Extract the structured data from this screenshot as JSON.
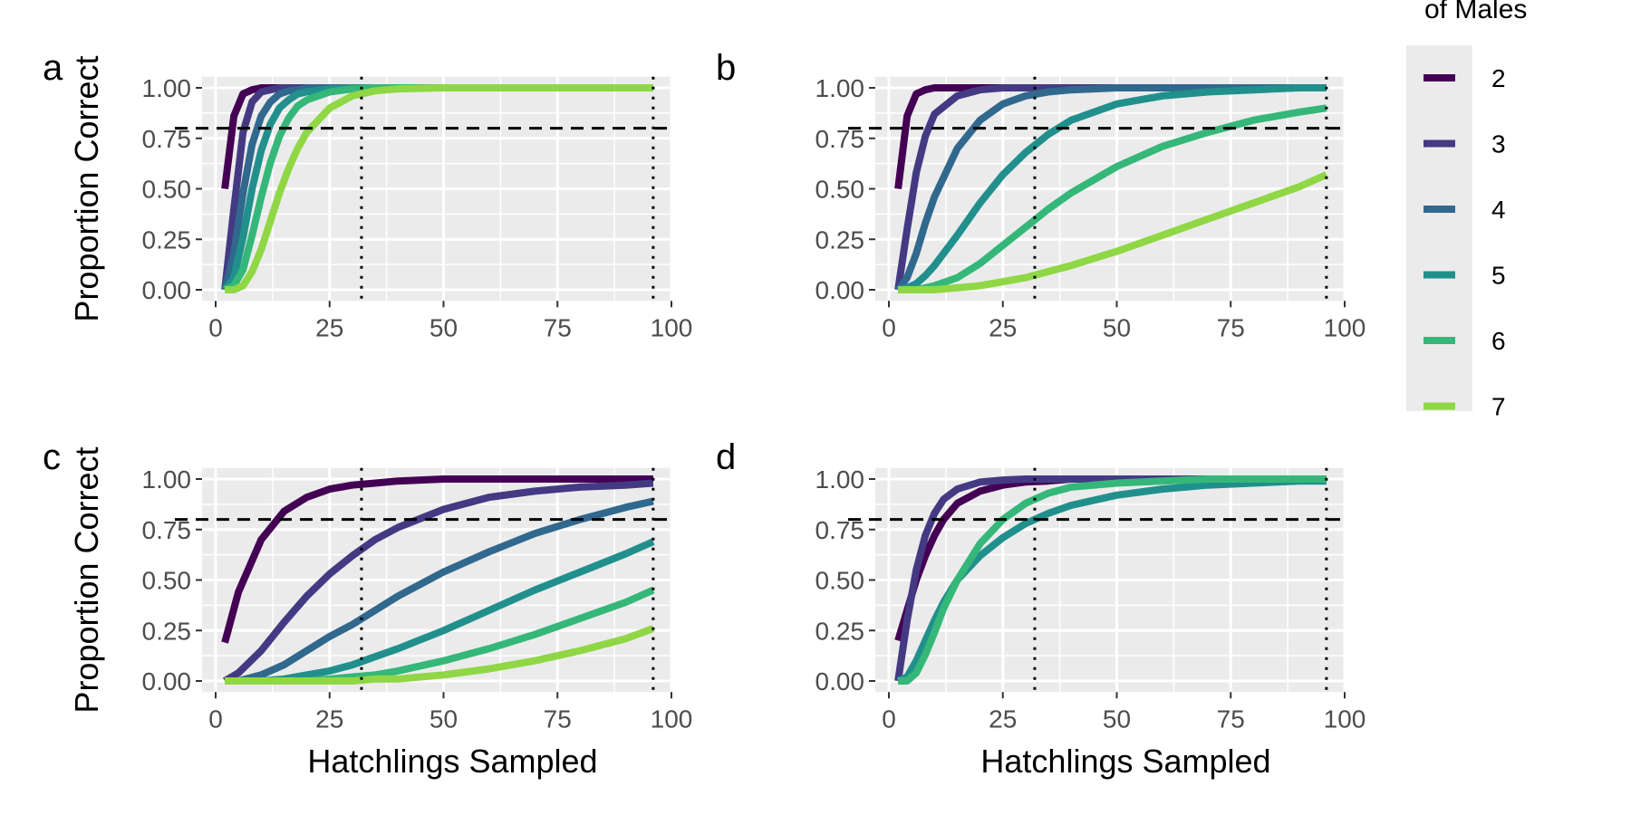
{
  "figure": {
    "legend_title": "of Males",
    "ylabel": "Proportion Correct",
    "xlabel": "Hatchlings Sampled",
    "colors": {
      "2": "#440154",
      "3": "#443A83",
      "4": "#31688E",
      "5": "#21908C",
      "6": "#35B779",
      "7": "#8FD744"
    }
  },
  "legend": {
    "title": "of Males",
    "entries": [
      "2",
      "3",
      "4",
      "5",
      "6",
      "7"
    ]
  },
  "chart_data": [
    {
      "panel": "a",
      "type": "line",
      "xlabel": "",
      "ylabel": "Proportion Correct",
      "xlim": [
        0,
        100
      ],
      "ylim": [
        0,
        1
      ],
      "x_ticks": [
        "0",
        "25",
        "50",
        "75",
        "100"
      ],
      "y_ticks": [
        "0.00",
        "0.25",
        "0.50",
        "0.75",
        "1.00"
      ],
      "hline": 0.8,
      "vlines": [
        32,
        96
      ],
      "x": [
        2,
        4,
        6,
        8,
        10,
        12,
        14,
        16,
        18,
        20,
        25,
        30,
        35,
        40,
        50,
        60,
        70,
        80,
        90,
        96
      ],
      "series": [
        {
          "name": "2",
          "values": [
            0.5,
            0.86,
            0.97,
            0.99,
            1.0,
            1.0,
            1.0,
            1.0,
            1.0,
            1.0,
            1.0,
            1.0,
            1.0,
            1.0,
            1.0,
            1.0,
            1.0,
            1.0,
            1.0,
            1.0
          ]
        },
        {
          "name": "3",
          "values": [
            0.0,
            0.4,
            0.78,
            0.93,
            0.98,
            0.99,
            1.0,
            1.0,
            1.0,
            1.0,
            1.0,
            1.0,
            1.0,
            1.0,
            1.0,
            1.0,
            1.0,
            1.0,
            1.0,
            1.0
          ]
        },
        {
          "name": "4",
          "values": [
            0.0,
            0.18,
            0.48,
            0.72,
            0.86,
            0.93,
            0.97,
            0.985,
            0.99,
            1.0,
            1.0,
            1.0,
            1.0,
            1.0,
            1.0,
            1.0,
            1.0,
            1.0,
            1.0,
            1.0
          ]
        },
        {
          "name": "5",
          "values": [
            0.0,
            0.06,
            0.26,
            0.5,
            0.69,
            0.82,
            0.9,
            0.94,
            0.97,
            0.98,
            0.995,
            1.0,
            1.0,
            1.0,
            1.0,
            1.0,
            1.0,
            1.0,
            1.0,
            1.0
          ]
        },
        {
          "name": "6",
          "values": [
            0.0,
            0.02,
            0.1,
            0.27,
            0.46,
            0.63,
            0.76,
            0.85,
            0.91,
            0.94,
            0.98,
            0.995,
            1.0,
            1.0,
            1.0,
            1.0,
            1.0,
            1.0,
            1.0,
            1.0
          ]
        },
        {
          "name": "7",
          "values": [
            0.0,
            0.0,
            0.02,
            0.09,
            0.2,
            0.34,
            0.48,
            0.6,
            0.7,
            0.78,
            0.9,
            0.96,
            0.985,
            0.995,
            1.0,
            1.0,
            1.0,
            1.0,
            1.0,
            1.0
          ]
        }
      ]
    },
    {
      "panel": "b",
      "type": "line",
      "xlabel": "",
      "ylabel": "",
      "xlim": [
        0,
        100
      ],
      "ylim": [
        0,
        1
      ],
      "x_ticks": [
        "0",
        "25",
        "50",
        "75",
        "100"
      ],
      "y_ticks": [
        "0.00",
        "0.25",
        "0.50",
        "0.75",
        "1.00"
      ],
      "hline": 0.8,
      "vlines": [
        32,
        96
      ],
      "x": [
        2,
        4,
        6,
        8,
        10,
        15,
        20,
        25,
        30,
        35,
        40,
        50,
        60,
        70,
        80,
        90,
        96
      ],
      "series": [
        {
          "name": "2",
          "values": [
            0.5,
            0.86,
            0.97,
            0.99,
            1.0,
            1.0,
            1.0,
            1.0,
            1.0,
            1.0,
            1.0,
            1.0,
            1.0,
            1.0,
            1.0,
            1.0,
            1.0
          ]
        },
        {
          "name": "3",
          "values": [
            0.0,
            0.3,
            0.58,
            0.76,
            0.87,
            0.96,
            0.99,
            1.0,
            1.0,
            1.0,
            1.0,
            1.0,
            1.0,
            1.0,
            1.0,
            1.0,
            1.0
          ]
        },
        {
          "name": "4",
          "values": [
            0.0,
            0.06,
            0.18,
            0.33,
            0.46,
            0.7,
            0.84,
            0.92,
            0.96,
            0.98,
            0.99,
            1.0,
            1.0,
            1.0,
            1.0,
            1.0,
            1.0
          ]
        },
        {
          "name": "5",
          "values": [
            0.0,
            0.01,
            0.03,
            0.07,
            0.12,
            0.27,
            0.43,
            0.57,
            0.68,
            0.77,
            0.84,
            0.92,
            0.96,
            0.98,
            0.99,
            1.0,
            1.0
          ]
        },
        {
          "name": "6",
          "values": [
            0.0,
            0.0,
            0.0,
            0.01,
            0.02,
            0.06,
            0.13,
            0.22,
            0.31,
            0.4,
            0.48,
            0.61,
            0.71,
            0.78,
            0.84,
            0.88,
            0.9
          ]
        },
        {
          "name": "7",
          "values": [
            0.0,
            0.0,
            0.0,
            0.0,
            0.0,
            0.01,
            0.02,
            0.04,
            0.06,
            0.09,
            0.12,
            0.19,
            0.27,
            0.35,
            0.43,
            0.51,
            0.57
          ]
        }
      ]
    },
    {
      "panel": "c",
      "type": "line",
      "xlabel": "Hatchlings Sampled",
      "ylabel": "Proportion Correct",
      "xlim": [
        0,
        100
      ],
      "ylim": [
        0,
        1
      ],
      "x_ticks": [
        "0",
        "25",
        "50",
        "75",
        "100"
      ],
      "y_ticks": [
        "0.00",
        "0.25",
        "0.50",
        "0.75",
        "1.00"
      ],
      "hline": 0.8,
      "vlines": [
        32,
        96
      ],
      "x": [
        2,
        5,
        10,
        15,
        20,
        25,
        30,
        35,
        40,
        50,
        60,
        70,
        80,
        90,
        96
      ],
      "series": [
        {
          "name": "2",
          "values": [
            0.19,
            0.44,
            0.7,
            0.84,
            0.91,
            0.95,
            0.97,
            0.98,
            0.99,
            1.0,
            1.0,
            1.0,
            1.0,
            1.0,
            1.0
          ]
        },
        {
          "name": "3",
          "values": [
            0.0,
            0.04,
            0.15,
            0.29,
            0.42,
            0.53,
            0.62,
            0.7,
            0.76,
            0.85,
            0.91,
            0.94,
            0.96,
            0.97,
            0.98
          ]
        },
        {
          "name": "4",
          "values": [
            0.0,
            0.0,
            0.03,
            0.08,
            0.15,
            0.22,
            0.28,
            0.35,
            0.42,
            0.54,
            0.64,
            0.73,
            0.8,
            0.86,
            0.89
          ]
        },
        {
          "name": "5",
          "values": [
            0.0,
            0.0,
            0.0,
            0.01,
            0.03,
            0.05,
            0.08,
            0.12,
            0.16,
            0.25,
            0.35,
            0.45,
            0.54,
            0.63,
            0.69
          ]
        },
        {
          "name": "6",
          "values": [
            0.0,
            0.0,
            0.0,
            0.0,
            0.0,
            0.01,
            0.02,
            0.03,
            0.05,
            0.1,
            0.16,
            0.23,
            0.31,
            0.39,
            0.45
          ]
        },
        {
          "name": "7",
          "values": [
            0.0,
            0.0,
            0.0,
            0.0,
            0.0,
            0.0,
            0.0,
            0.01,
            0.01,
            0.03,
            0.06,
            0.1,
            0.15,
            0.21,
            0.26
          ]
        }
      ]
    },
    {
      "panel": "d",
      "type": "line",
      "xlabel": "Hatchlings Sampled",
      "ylabel": "",
      "xlim": [
        0,
        100
      ],
      "ylim": [
        0,
        1
      ],
      "x_ticks": [
        "0",
        "25",
        "50",
        "75",
        "100"
      ],
      "y_ticks": [
        "0.00",
        "0.25",
        "0.50",
        "0.75",
        "1.00"
      ],
      "hline": 0.8,
      "vlines": [
        32,
        96
      ],
      "x": [
        2,
        4,
        6,
        8,
        10,
        12,
        15,
        20,
        25,
        30,
        35,
        40,
        50,
        60,
        70,
        80,
        90,
        96
      ],
      "series": [
        {
          "name": "2",
          "values": [
            0.2,
            0.35,
            0.5,
            0.62,
            0.72,
            0.8,
            0.88,
            0.94,
            0.97,
            0.985,
            0.99,
            1.0,
            1.0,
            1.0,
            1.0,
            1.0,
            1.0,
            1.0
          ]
        },
        {
          "name": "3",
          "values": [
            0.0,
            0.3,
            0.55,
            0.72,
            0.83,
            0.9,
            0.95,
            0.985,
            0.995,
            1.0,
            1.0,
            1.0,
            1.0,
            1.0,
            1.0,
            1.0,
            1.0,
            1.0
          ]
        },
        {
          "name": "5",
          "values": [
            0.0,
            0.02,
            0.1,
            0.2,
            0.3,
            0.39,
            0.5,
            0.62,
            0.71,
            0.78,
            0.83,
            0.87,
            0.92,
            0.95,
            0.97,
            0.98,
            0.99,
            0.99
          ]
        },
        {
          "name": "6",
          "values": [
            0.0,
            0.0,
            0.04,
            0.13,
            0.24,
            0.36,
            0.5,
            0.68,
            0.8,
            0.88,
            0.93,
            0.96,
            0.98,
            0.99,
            1.0,
            1.0,
            1.0,
            1.0
          ]
        }
      ]
    }
  ]
}
